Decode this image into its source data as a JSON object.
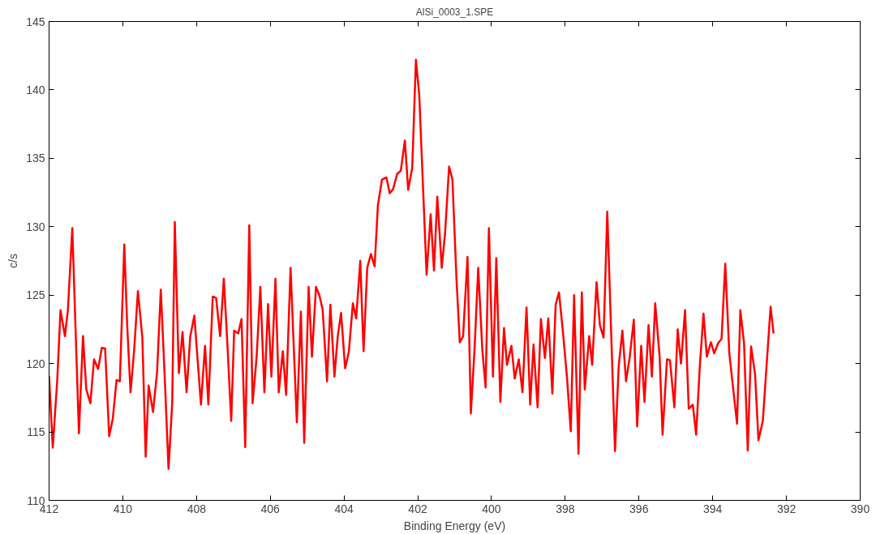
{
  "chart_data": {
    "type": "line",
    "title": "AlSi_0003_1.SPE",
    "xlabel": "Binding Energy (eV)",
    "ylabel": "c/s",
    "x": [
      412.0,
      411.9,
      411.78,
      411.69,
      411.57,
      411.49,
      411.37,
      411.19,
      411.08,
      410.99,
      410.88,
      410.78,
      410.67,
      410.57,
      410.48,
      410.37,
      410.27,
      410.17,
      410.08,
      409.96,
      409.88,
      409.79,
      409.69,
      409.59,
      409.47,
      409.38,
      409.3,
      409.18,
      409.07,
      408.97,
      408.86,
      408.76,
      408.66,
      408.59,
      408.48,
      408.38,
      408.27,
      408.17,
      408.06,
      407.88,
      407.77,
      407.68,
      407.56,
      407.47,
      407.36,
      407.26,
      407.16,
      407.06,
      406.98,
      406.87,
      406.78,
      406.68,
      406.57,
      406.48,
      406.37,
      406.27,
      406.16,
      406.06,
      405.97,
      405.86,
      405.77,
      405.66,
      405.57,
      405.45,
      405.28,
      405.17,
      405.08,
      404.96,
      404.87,
      404.76,
      404.67,
      404.58,
      404.46,
      404.37,
      404.26,
      404.17,
      404.08,
      403.97,
      403.87,
      403.76,
      403.67,
      403.56,
      403.47,
      403.37,
      403.27,
      403.17,
      403.08,
      402.97,
      402.85,
      402.76,
      402.67,
      402.56,
      402.46,
      402.35,
      402.26,
      402.15,
      402.05,
      401.96,
      401.76,
      401.65,
      401.56,
      401.47,
      401.35,
      401.26,
      401.15,
      401.06,
      400.95,
      400.86,
      400.77,
      400.65,
      400.56,
      400.46,
      400.36,
      400.25,
      400.16,
      400.07,
      399.96,
      399.87,
      399.76,
      399.66,
      399.58,
      399.46,
      399.37,
      399.26,
      399.16,
      399.05,
      398.95,
      398.86,
      398.75,
      398.66,
      398.55,
      398.46,
      398.35,
      398.26,
      398.17,
      398.06,
      397.95,
      397.85,
      397.76,
      397.64,
      397.55,
      397.47,
      397.35,
      397.27,
      397.15,
      397.06,
      396.96,
      396.86,
      396.65,
      396.55,
      396.45,
      396.35,
      396.25,
      396.14,
      396.05,
      395.94,
      395.85,
      395.74,
      395.65,
      395.56,
      395.44,
      395.36,
      395.24,
      395.16,
      395.04,
      394.95,
      394.86,
      394.75,
      394.65,
      394.54,
      394.45,
      394.35,
      394.25,
      394.16,
      394.05,
      393.96,
      393.85,
      393.76,
      393.66,
      393.55,
      393.34,
      393.25,
      393.15,
      393.05,
      392.96,
      392.85,
      392.76,
      392.64,
      392.52,
      392.43,
      392.35
    ],
    "series": [
      {
        "color": "#ff0000",
        "values": [
          119.1,
          113.85,
          118.7,
          123.9,
          122.0,
          123.9,
          129.9,
          114.9,
          122.0,
          118.1,
          117.1,
          120.3,
          119.6,
          121.15,
          121.1,
          114.7,
          116.0,
          118.8,
          118.7,
          128.7,
          122.7,
          117.9,
          121.05,
          125.3,
          121.9,
          113.2,
          118.4,
          116.45,
          119.4,
          125.4,
          118.8,
          112.3,
          117.1,
          130.35,
          119.3,
          122.3,
          117.9,
          122.0,
          123.5,
          117.0,
          121.3,
          117.0,
          124.9,
          124.8,
          122.0,
          126.2,
          121.25,
          115.8,
          122.4,
          122.2,
          123.25,
          113.9,
          130.1,
          117.1,
          120.5,
          125.6,
          117.9,
          124.35,
          119.05,
          126.2,
          117.9,
          120.9,
          117.7,
          127.0,
          115.7,
          123.8,
          114.2,
          125.6,
          120.5,
          125.6,
          125.0,
          123.95,
          118.7,
          124.3,
          119.05,
          122.0,
          123.7,
          119.65,
          120.85,
          124.4,
          123.3,
          127.5,
          120.9,
          127.0,
          128.0,
          127.1,
          131.6,
          133.45,
          133.6,
          132.45,
          132.75,
          133.85,
          134.1,
          136.3,
          132.7,
          134.3,
          142.2,
          139.65,
          126.5,
          130.9,
          126.8,
          132.2,
          127.0,
          129.5,
          134.4,
          133.45,
          126.2,
          121.55,
          122.0,
          127.8,
          116.35,
          121.05,
          127.0,
          121.05,
          118.25,
          129.9,
          119.05,
          127.7,
          117.2,
          122.6,
          119.9,
          121.3,
          118.9,
          120.3,
          117.9,
          124.1,
          117.0,
          121.4,
          116.8,
          123.25,
          120.4,
          123.3,
          117.8,
          124.3,
          125.2,
          122.25,
          118.9,
          115.05,
          125.0,
          113.4,
          125.2,
          118.1,
          122.0,
          119.9,
          125.95,
          122.8,
          121.9,
          131.1,
          113.6,
          119.8,
          122.4,
          118.7,
          120.5,
          123.2,
          115.4,
          121.3,
          117.2,
          122.8,
          119.05,
          124.4,
          120.5,
          114.8,
          120.3,
          120.25,
          116.8,
          122.5,
          120.0,
          123.9,
          116.7,
          117.0,
          114.8,
          119.8,
          123.65,
          120.5,
          121.55,
          120.75,
          121.5,
          121.8,
          127.3,
          120.75,
          115.6,
          123.9,
          121.5,
          113.65,
          121.25,
          119.2,
          114.4,
          115.8,
          120.6,
          124.15,
          122.2
        ]
      }
    ],
    "xlim": [
      412,
      390
    ],
    "ylim": [
      110,
      145
    ],
    "xticks": [
      412,
      410,
      408,
      406,
      404,
      402,
      400,
      398,
      396,
      394,
      392,
      390
    ],
    "yticks": [
      110,
      115,
      120,
      125,
      130,
      135,
      140,
      145
    ],
    "grid": false
  }
}
